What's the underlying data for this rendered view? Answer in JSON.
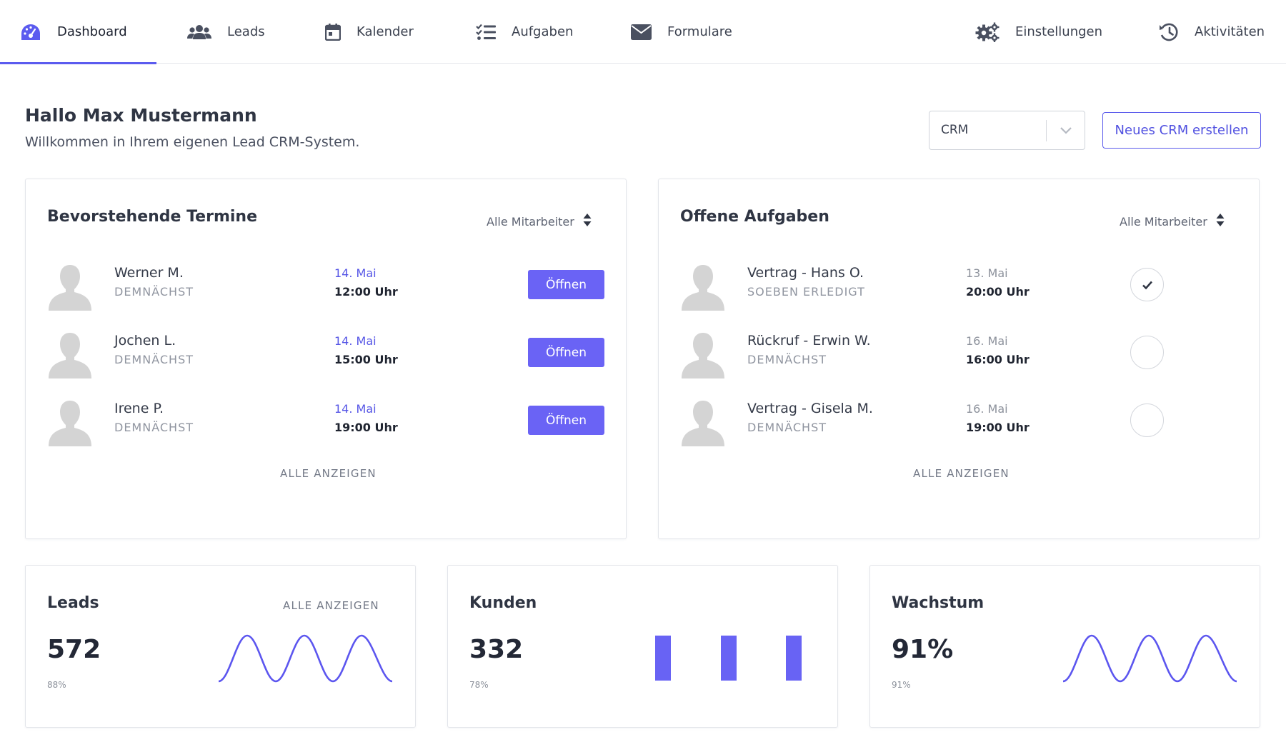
{
  "nav": {
    "items": [
      {
        "label": "Dashboard",
        "icon": "dashboard-gauge-icon",
        "active": true
      },
      {
        "label": "Leads",
        "icon": "users-icon"
      },
      {
        "label": "Kalender",
        "icon": "calendar-icon"
      },
      {
        "label": "Aufgaben",
        "icon": "task-list-icon"
      },
      {
        "label": "Formulare",
        "icon": "envelope-icon"
      },
      {
        "label": "Einstellungen",
        "icon": "gears-icon"
      },
      {
        "label": "Aktivitäten",
        "icon": "history-icon"
      }
    ]
  },
  "header": {
    "greeting": "Hallo Max Mustermann",
    "welcome": "Willkommen in Ihrem eigenen Lead CRM-System.",
    "crm_select_value": "CRM",
    "new_crm_label": "Neues CRM erstellen"
  },
  "appointments": {
    "title": "Bevorstehende Termine",
    "filter": "Alle Mitarbeiter",
    "rows": [
      {
        "name": "Werner M.",
        "status": "DEMNÄCHST",
        "date": "14. Mai",
        "time": "12:00 Uhr",
        "action": "Öffnen"
      },
      {
        "name": "Jochen L.",
        "status": "DEMNÄCHST",
        "date": "14. Mai",
        "time": "15:00 Uhr",
        "action": "Öffnen"
      },
      {
        "name": "Irene P.",
        "status": "DEMNÄCHST",
        "date": "14. Mai",
        "time": "19:00 Uhr",
        "action": "Öffnen"
      }
    ],
    "show_all": "ALLE ANZEIGEN"
  },
  "tasks": {
    "title": "Offene Aufgaben",
    "filter": "Alle Mitarbeiter",
    "rows": [
      {
        "name": "Vertrag - Hans O.",
        "status": "SOEBEN ERLEDIGT",
        "date": "13. Mai",
        "time": "20:00 Uhr",
        "done": true
      },
      {
        "name": "Rückruf - Erwin W.",
        "status": "DEMNÄCHST",
        "date": "16. Mai",
        "time": "16:00 Uhr",
        "done": false
      },
      {
        "name": "Vertrag - Gisela M.",
        "status": "DEMNÄCHST",
        "date": "16. Mai",
        "time": "19:00 Uhr",
        "done": false
      }
    ],
    "show_all": "ALLE ANZEIGEN"
  },
  "stats": {
    "leads": {
      "title": "Leads",
      "value": "572",
      "sub": "88%",
      "link": "ALLE ANZEIGEN",
      "chart": "wave"
    },
    "customers": {
      "title": "Kunden",
      "value": "332",
      "sub": "78%",
      "chart": "bars"
    },
    "growth": {
      "title": "Wachstum",
      "value": "91%",
      "sub": "91%",
      "chart": "wave"
    }
  },
  "colors": {
    "accent": "#6a63f5",
    "accent_text": "#5656e6",
    "text_dark": "#2f3543",
    "muted": "#9095a0",
    "border": "#e3e5ea"
  }
}
